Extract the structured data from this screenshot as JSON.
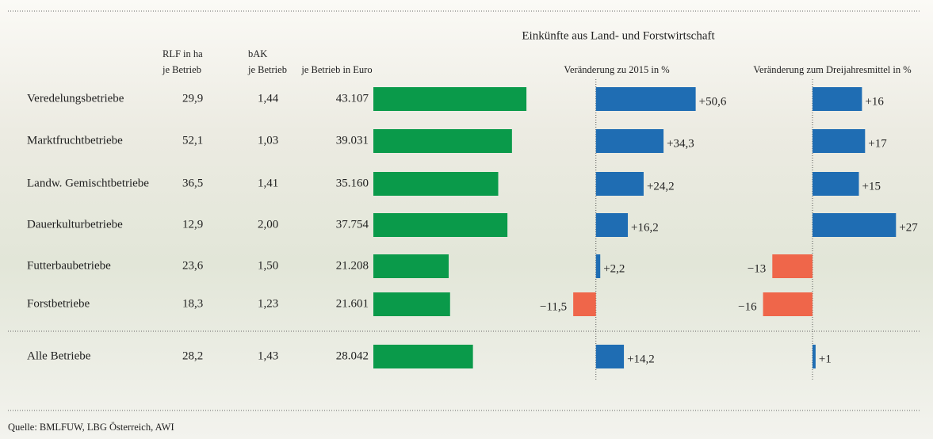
{
  "group_title": "Einkünfte aus Land- und Forstwirtschaft",
  "table": {
    "headers": {
      "rlf": [
        "RLF in ha",
        "je Betrieb"
      ],
      "bak": [
        "bAK",
        "je Betrieb"
      ]
    },
    "rows": [
      [
        "Veredelungsbetriebe",
        "29,9",
        "1,44"
      ],
      [
        "Marktfruchtbetriebe",
        "52,1",
        "1,03"
      ],
      [
        "Landw. Gemischtbetriebe",
        "36,5",
        "1,41"
      ],
      [
        "Dauerkulturbetriebe",
        "12,9",
        "2,00"
      ],
      [
        "Futterbaubetriebe",
        "23,6",
        "1,50"
      ],
      [
        "Forstbetriebe",
        "18,3",
        "1,23"
      ],
      [
        "Alle Betriebe",
        "28,2",
        "1,43"
      ]
    ]
  },
  "chart_data": [
    {
      "type": "bar",
      "orientation": "horizontal",
      "title": "je Betrieb in Euro",
      "values": [
        43107,
        39031,
        35160,
        37754,
        21208,
        21601,
        28042
      ],
      "value_labels": [
        "43.107",
        "39.031",
        "35.160",
        "37.754",
        "21.208",
        "21.601",
        "28.042"
      ],
      "color": "#0a9a4a",
      "xlim": [
        0,
        50000
      ]
    },
    {
      "type": "bar",
      "orientation": "horizontal",
      "title": "Veränderung zu 2015 in %",
      "values": [
        50.6,
        34.3,
        24.2,
        16.2,
        2.2,
        -11.5,
        14.2
      ],
      "value_labels": [
        "+50,6",
        "+34,3",
        "+24,2",
        "+16,2",
        "+2,2",
        "−11,5",
        "+14,2"
      ],
      "color": "#1f6db3",
      "negative_color": "#ef664a",
      "xlim": [
        -20,
        60
      ]
    },
    {
      "type": "bar",
      "orientation": "horizontal",
      "title": "Veränderung zum Dreijahresmittel in %",
      "values": [
        16,
        17,
        15,
        27,
        -13,
        -16,
        1
      ],
      "value_labels": [
        "+16",
        "+17",
        "+15",
        "+27",
        "−13",
        "−16",
        "+1"
      ],
      "color": "#1f6db3",
      "negative_color": "#ef664a",
      "xlim": [
        -20,
        30
      ]
    }
  ],
  "source": "Quelle: BMLFUW, LBG Österreich, AWI"
}
